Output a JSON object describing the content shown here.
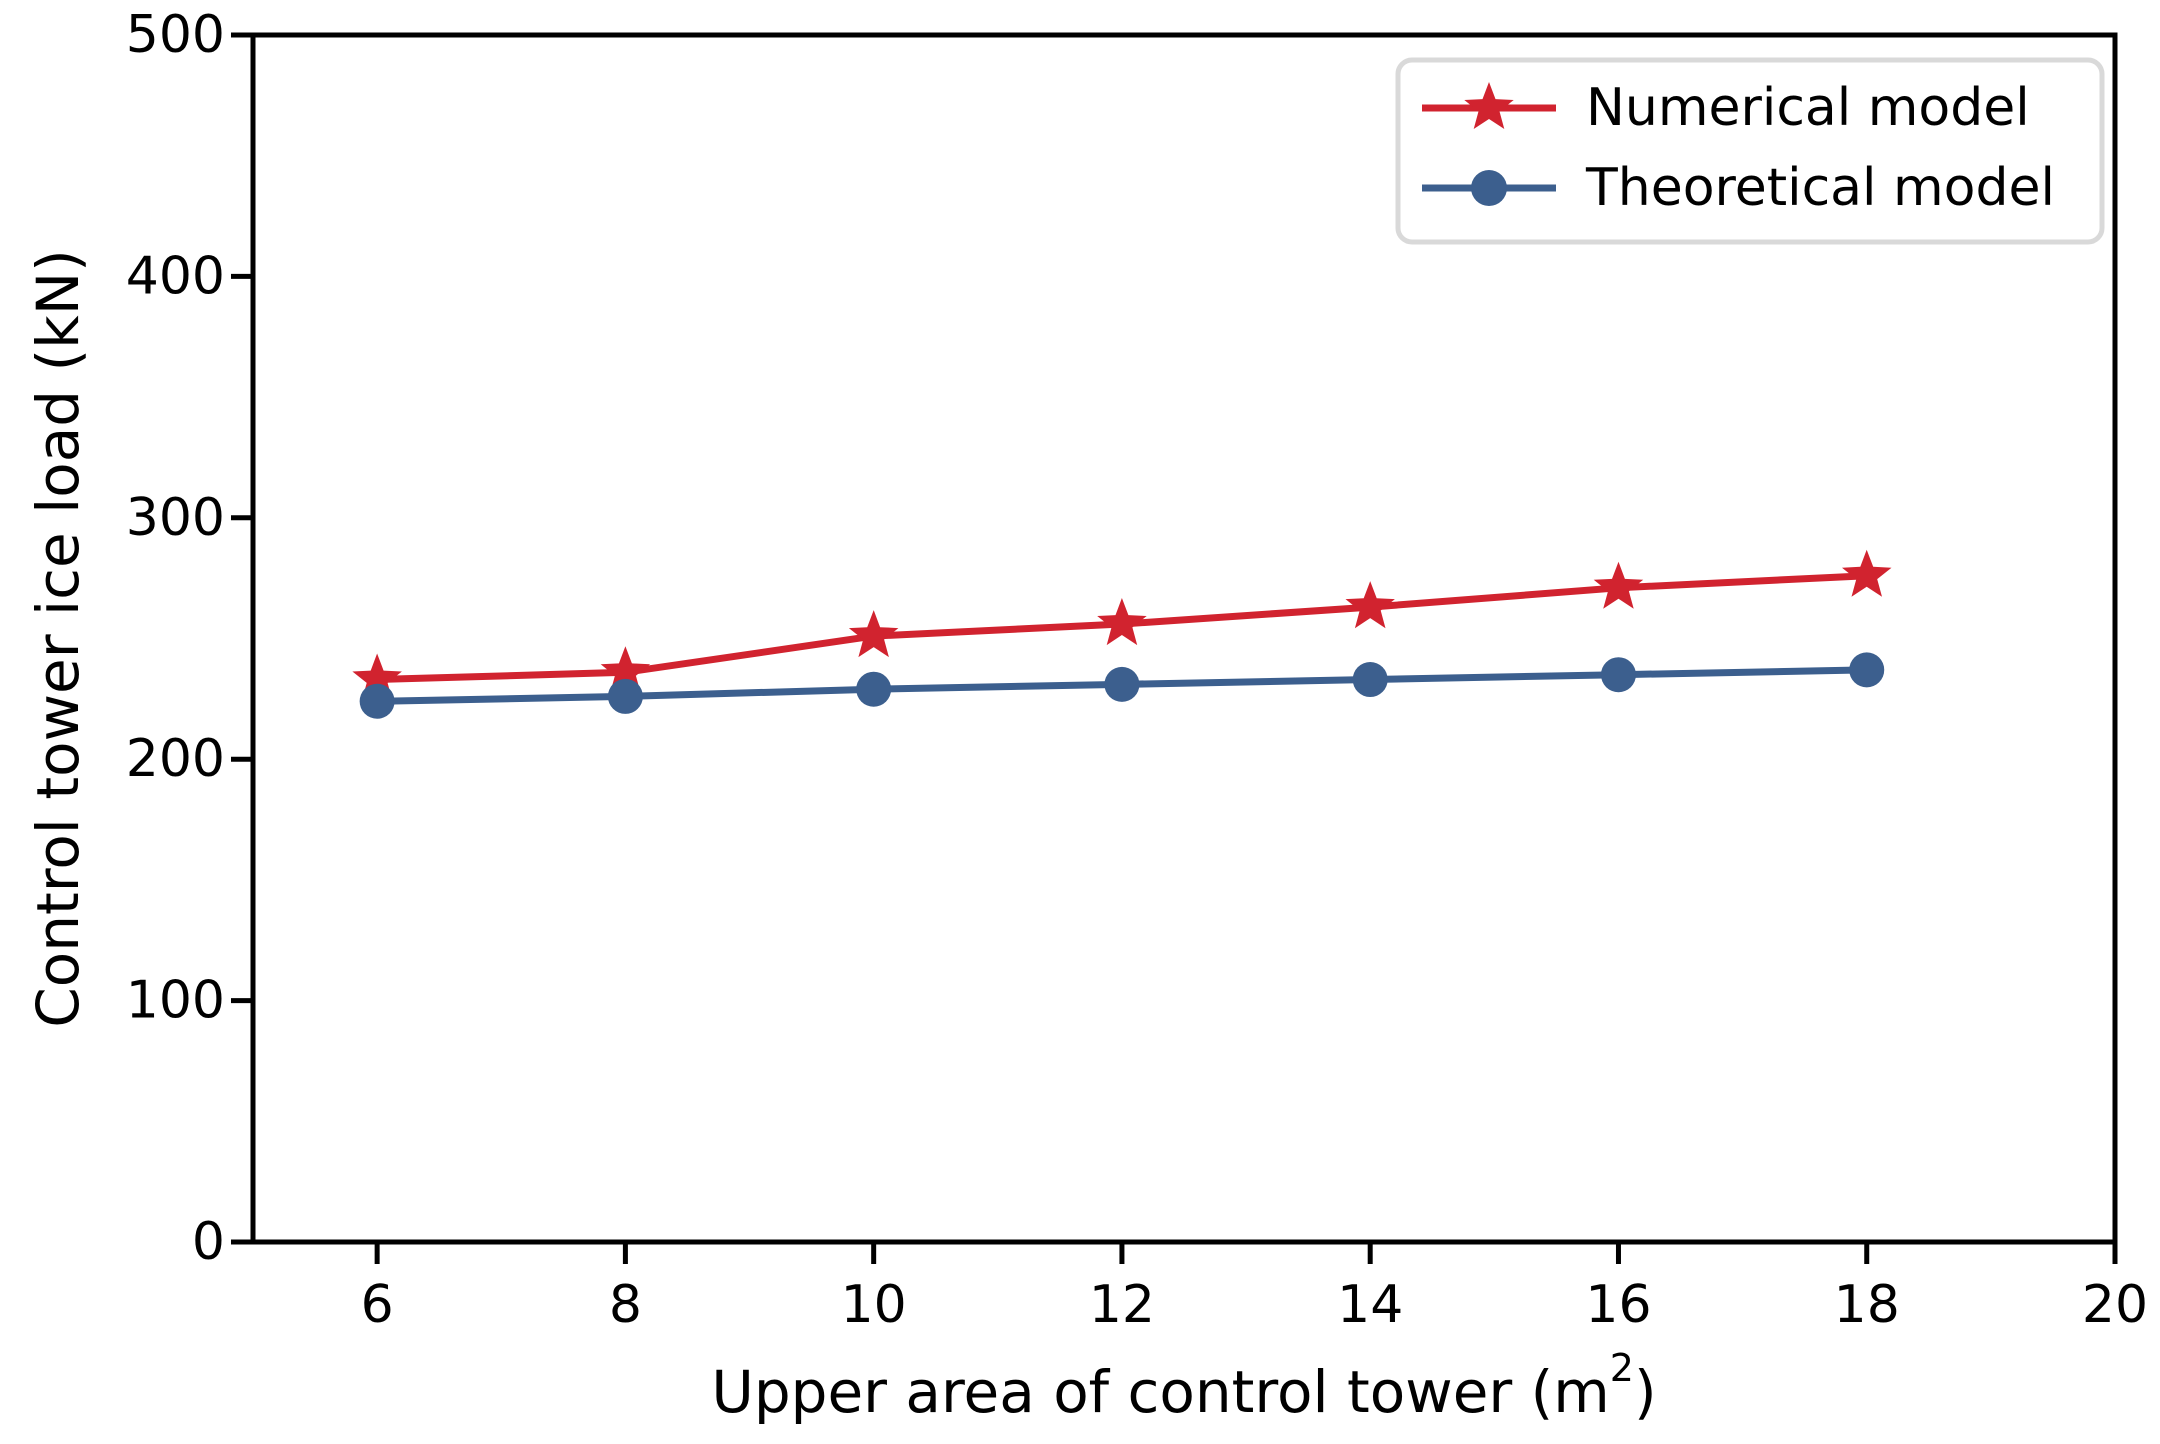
{
  "figure": {
    "background": "#ffffff",
    "axis_color": "#000000",
    "legend_border_color": "#d9d9d9",
    "legend_background": "#ffffff"
  },
  "chart_data": {
    "type": "line",
    "title": "",
    "xlabel": "Upper area of control tower (m²)",
    "xlabel_parts": {
      "base": "Upper area of control tower (m",
      "superscript": "2",
      "close": ")"
    },
    "ylabel": "Control tower ice load (kN)",
    "x": [
      6,
      8,
      10,
      12,
      14,
      16,
      18
    ],
    "series": [
      {
        "name": "Numerical model",
        "color": "#d1232f",
        "marker": "star",
        "values": [
          233,
          236,
          251,
          256,
          263,
          271,
          276
        ]
      },
      {
        "name": "Theoretical model",
        "color": "#3c5f8e",
        "marker": "circle",
        "values": [
          224,
          226,
          229,
          231,
          233,
          235,
          237
        ]
      }
    ],
    "xlim": [
      5,
      20
    ],
    "ylim": [
      0,
      500
    ],
    "xticks": [
      6,
      8,
      10,
      12,
      14,
      16,
      18,
      20
    ],
    "yticks": [
      0,
      100,
      200,
      300,
      400,
      500
    ],
    "grid": false,
    "legend_position": "upper right"
  }
}
